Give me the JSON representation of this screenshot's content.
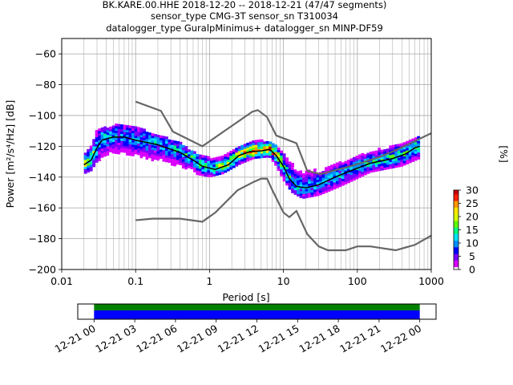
{
  "header": {
    "title_line1": "BK.KARE.00.HHE   2018-12-20 -- 2018-12-21  (47/47 segments)",
    "title_line2": "sensor_type CMG-3T sensor_sn T310034",
    "title_line3": "datalogger_type GuralpMinimus+ datalogger_sn MINP-DF59"
  },
  "colors": {
    "noise_model": "#666666",
    "mode": "#000000",
    "timeline_top": "#008000",
    "timeline_bottom": "#0000ff",
    "grid": "#b0b0b0"
  },
  "chart_data": {
    "type": "heatmap",
    "xlabel": "Period [s]",
    "ylabel": "Power [m²/s⁴/Hz] [dB]",
    "x_scale": "log",
    "xlim": [
      0.01,
      1000
    ],
    "ylim": [
      -200,
      -50
    ],
    "grid": true,
    "x_ticks": [
      {
        "value": 0.01,
        "label": "0.01"
      },
      {
        "value": 0.1,
        "label": "0.1"
      },
      {
        "value": 1,
        "label": "1"
      },
      {
        "value": 10,
        "label": "10"
      },
      {
        "value": 100,
        "label": "100"
      },
      {
        "value": 1000,
        "label": "1000"
      }
    ],
    "y_ticks": [
      {
        "value": -60,
        "label": "−60"
      },
      {
        "value": -80,
        "label": "−80"
      },
      {
        "value": -100,
        "label": "−100"
      },
      {
        "value": -120,
        "label": "−120"
      },
      {
        "value": -140,
        "label": "−140"
      },
      {
        "value": -160,
        "label": "−160"
      },
      {
        "value": -180,
        "label": "−180"
      },
      {
        "value": -200,
        "label": "−200"
      }
    ],
    "colorbar": {
      "label": "[%]",
      "range": [
        0,
        30
      ],
      "ticks": [
        {
          "value": 0,
          "label": "0"
        },
        {
          "value": 5,
          "label": "5"
        },
        {
          "value": 10,
          "label": "10"
        },
        {
          "value": 15,
          "label": "15"
        },
        {
          "value": 20,
          "label": "20"
        },
        {
          "value": 25,
          "label": "25"
        },
        {
          "value": 30,
          "label": "30"
        }
      ],
      "colormap": [
        "#ffffff",
        "#d900ff",
        "#7a00ff",
        "#0000ff",
        "#0090ff",
        "#00e0ff",
        "#00ff80",
        "#60ff00",
        "#d8ff00",
        "#ffe600",
        "#ff9a00",
        "#ff2000",
        "#c80000"
      ]
    },
    "noise_model_high": [
      [
        0.1,
        -91
      ],
      [
        0.22,
        -97
      ],
      [
        0.32,
        -110.5
      ],
      [
        0.8,
        -120
      ],
      [
        3.8,
        -97.5
      ],
      [
        4.5,
        -96.5
      ],
      [
        6,
        -101
      ],
      [
        8,
        -113
      ],
      [
        15,
        -118
      ],
      [
        21,
        -136
      ],
      [
        32,
        -138
      ],
      [
        80,
        -133
      ],
      [
        200,
        -127
      ],
      [
        350,
        -122
      ],
      [
        1000,
        -111.5
      ]
    ],
    "noise_model_low": [
      [
        0.1,
        -168
      ],
      [
        0.17,
        -167
      ],
      [
        0.4,
        -167
      ],
      [
        0.8,
        -169
      ],
      [
        1.2,
        -163
      ],
      [
        2.4,
        -148.5
      ],
      [
        4,
        -143
      ],
      [
        5,
        -141
      ],
      [
        6,
        -141
      ],
      [
        7,
        -148
      ],
      [
        10,
        -163
      ],
      [
        12,
        -166
      ],
      [
        15,
        -162
      ],
      [
        21,
        -177
      ],
      [
        30,
        -185
      ],
      [
        40,
        -187.5
      ],
      [
        70,
        -187.5
      ],
      [
        100,
        -185
      ],
      [
        150,
        -185
      ],
      [
        330,
        -187.5
      ],
      [
        600,
        -184
      ],
      [
        1000,
        -178
      ]
    ],
    "mode_curve": [
      [
        0.02,
        -132
      ],
      [
        0.025,
        -129
      ],
      [
        0.03,
        -121
      ],
      [
        0.035,
        -116
      ],
      [
        0.05,
        -114
      ],
      [
        0.07,
        -114
      ],
      [
        0.1,
        -116
      ],
      [
        0.2,
        -119
      ],
      [
        0.4,
        -124
      ],
      [
        0.6,
        -129
      ],
      [
        0.8,
        -133
      ],
      [
        1.2,
        -135
      ],
      [
        1.8,
        -132
      ],
      [
        2.5,
        -126
      ],
      [
        3.5,
        -123.5
      ],
      [
        5,
        -123
      ],
      [
        6.5,
        -122
      ],
      [
        8,
        -126
      ],
      [
        10,
        -133
      ],
      [
        12,
        -141
      ],
      [
        15,
        -146
      ],
      [
        20,
        -147
      ],
      [
        30,
        -145
      ],
      [
        50,
        -140
      ],
      [
        80,
        -136
      ],
      [
        150,
        -131
      ],
      [
        300,
        -128
      ],
      [
        450,
        -125
      ],
      [
        600,
        -121
      ],
      [
        700,
        -120
      ]
    ],
    "density_band": [
      {
        "period": 0.02,
        "low": -138,
        "high": -126,
        "peak": 18
      },
      {
        "period": 0.025,
        "low": -136,
        "high": -120,
        "peak": 15
      },
      {
        "period": 0.03,
        "low": -130,
        "high": -110,
        "peak": 12
      },
      {
        "period": 0.05,
        "low": -126,
        "high": -107,
        "peak": 10
      },
      {
        "period": 0.07,
        "low": -127,
        "high": -106,
        "peak": 9
      },
      {
        "period": 0.1,
        "low": -128,
        "high": -108,
        "peak": 9
      },
      {
        "period": 0.2,
        "low": -132,
        "high": -113,
        "peak": 10
      },
      {
        "period": 0.4,
        "low": -135,
        "high": -118,
        "peak": 11
      },
      {
        "period": 0.6,
        "low": -138,
        "high": -124,
        "peak": 13
      },
      {
        "period": 1,
        "low": -140,
        "high": -128,
        "peak": 14
      },
      {
        "period": 1.5,
        "low": -138,
        "high": -127,
        "peak": 16
      },
      {
        "period": 2.5,
        "low": -132,
        "high": -120,
        "peak": 18
      },
      {
        "period": 4,
        "low": -128,
        "high": -117,
        "peak": 22
      },
      {
        "period": 6.5,
        "low": -127,
        "high": -117,
        "peak": 26
      },
      {
        "period": 8,
        "low": -133,
        "high": -120,
        "peak": 20
      },
      {
        "period": 10,
        "low": -142,
        "high": -125,
        "peak": 15
      },
      {
        "period": 13,
        "low": -150,
        "high": -132,
        "peak": 12
      },
      {
        "period": 18,
        "low": -154,
        "high": -135,
        "peak": 10
      },
      {
        "period": 30,
        "low": -152,
        "high": -136,
        "peak": 10
      },
      {
        "period": 60,
        "low": -146,
        "high": -131,
        "peak": 11
      },
      {
        "period": 150,
        "low": -137,
        "high": -124,
        "peak": 12
      },
      {
        "period": 400,
        "low": -133,
        "high": -118,
        "peak": 13
      },
      {
        "period": 700,
        "low": -128,
        "high": -114,
        "peak": 14
      }
    ],
    "timeline": {
      "ticks": [
        "12-21 00",
        "12-21 03",
        "12-21 06",
        "12-21 09",
        "12-21 12",
        "12-21 15",
        "12-21 18",
        "12-21 21",
        "12-22 00"
      ],
      "coverage_start_hours": 0,
      "coverage_end_hours": 24,
      "axis_start_hours": -1.2,
      "axis_end_hours": 25.2
    }
  }
}
